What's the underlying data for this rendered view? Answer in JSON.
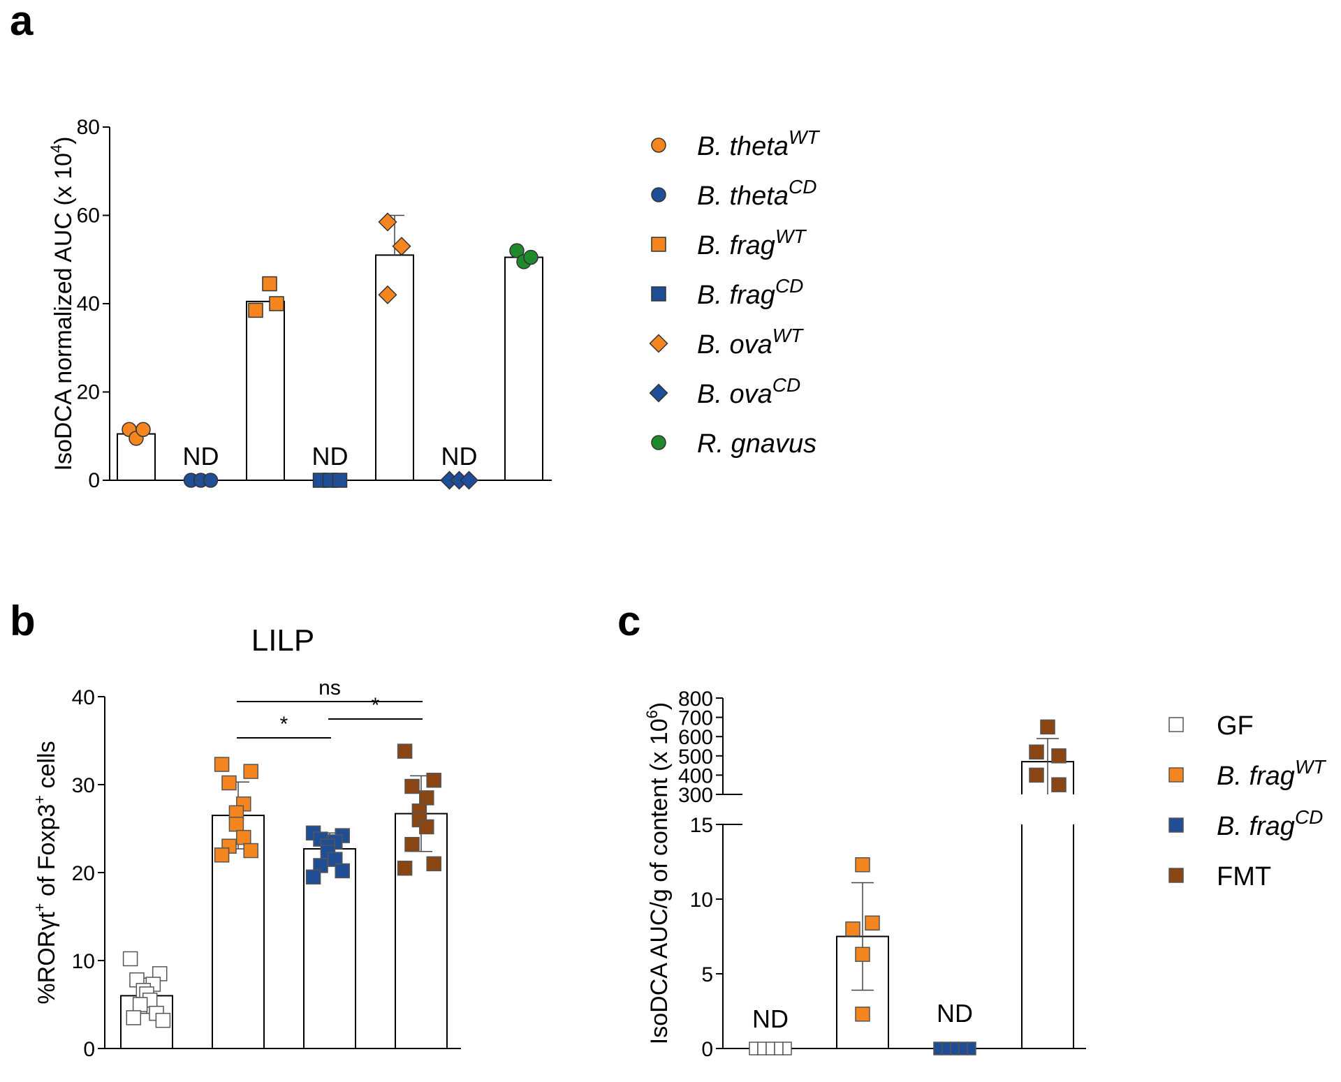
{
  "figure": {
    "panels": [
      {
        "id": "a",
        "label": "a"
      },
      {
        "id": "b",
        "label": "b",
        "title": "LILP"
      },
      {
        "id": "c",
        "label": "c"
      }
    ]
  },
  "chart_data": [
    {
      "id": "a",
      "type": "bar",
      "ylabel": "IsoDCA normalized AUC (x 10",
      "ylabel_sup": "4",
      "ylabel_tail": ")",
      "ylim": [
        0,
        80
      ],
      "yticks": [
        0,
        20,
        40,
        60,
        80
      ],
      "grid": false,
      "legend_position": "right",
      "categories": [
        "B. thetaWT",
        "B. thetaCD",
        "B. fragWT",
        "B. fragCD",
        "B. ovaWT",
        "B. ovaCD",
        "R. gnavus"
      ],
      "series": [
        {
          "name": "B. theta",
          "sup": "WT",
          "color": "#f5861f",
          "marker": "circle",
          "mean": 10.5,
          "points": [
            11.5,
            9.5,
            11.5
          ],
          "nd": false
        },
        {
          "name": "B. theta",
          "sup": "CD",
          "color": "#1f4e96",
          "marker": "circle",
          "mean": 0,
          "points": [
            0,
            0,
            0
          ],
          "nd": true
        },
        {
          "name": "B. frag",
          "sup": "WT",
          "color": "#f5861f",
          "marker": "square",
          "mean": 40.5,
          "points": [
            38.5,
            44.5,
            40
          ],
          "nd": false
        },
        {
          "name": "B. frag",
          "sup": "CD",
          "color": "#1f4e96",
          "marker": "square",
          "mean": 0,
          "points": [
            0,
            0,
            0
          ],
          "nd": true
        },
        {
          "name": "B. ova",
          "sup": "WT",
          "color": "#f5861f",
          "marker": "diamond",
          "mean": 51,
          "points": [
            58.5,
            42,
            53
          ],
          "sd": 9,
          "nd": false
        },
        {
          "name": "B. ova",
          "sup": "CD",
          "color": "#1f4e96",
          "marker": "diamond",
          "mean": 0,
          "points": [
            0,
            0,
            0
          ],
          "nd": true
        },
        {
          "name": "R. gnavus",
          "sup": "",
          "color": "#1e8a2c",
          "marker": "circle",
          "mean": 50.5,
          "points": [
            52,
            49.5,
            50.5
          ],
          "nd": false
        }
      ],
      "nd_label": "ND"
    },
    {
      "id": "b",
      "type": "bar",
      "title": "LILP",
      "ylabel": "%RORγt",
      "ylabel_sup1": "+",
      "ylabel_mid": " of Foxp3",
      "ylabel_sup2": "+",
      "ylabel_tail": " cells",
      "ylim": [
        0,
        40
      ],
      "yticks": [
        0,
        10,
        20,
        30,
        40
      ],
      "grid": false,
      "series": [
        {
          "name": "GF",
          "color": "#ffffff",
          "edge": "#555555",
          "marker": "square",
          "mean": 6,
          "sd": 2,
          "points": [
            10.2,
            8.5,
            7.8,
            7.3,
            6.6,
            6.2,
            5.5,
            5.0,
            4.0,
            3.5,
            3.2
          ]
        },
        {
          "name": "B. fragWT",
          "color": "#f5861f",
          "edge": "#555555",
          "marker": "square",
          "mean": 26.5,
          "sd": 3.8,
          "points": [
            32.3,
            31.5,
            30.2,
            27.8,
            26.8,
            25.5,
            24.0,
            23.0,
            22.5,
            22.0
          ]
        },
        {
          "name": "B. fragCD",
          "color": "#1f4e96",
          "edge": "#555555",
          "marker": "square",
          "mean": 22.7,
          "sd": 1.8,
          "points": [
            24.5,
            24.2,
            23.8,
            23.5,
            23.0,
            22.3,
            21.5,
            20.8,
            20.2,
            19.5
          ]
        },
        {
          "name": "FMT",
          "color": "#8b4513",
          "edge": "#555555",
          "marker": "square",
          "mean": 26.7,
          "sd": 4.3,
          "points": [
            33.8,
            30.5,
            29.8,
            28.5,
            27.0,
            26.0,
            25.2,
            23.2,
            21.0,
            20.5
          ]
        }
      ],
      "significance": [
        {
          "from": 1,
          "to": 3,
          "label": "ns"
        },
        {
          "from": 1,
          "to": 2,
          "label": "*"
        },
        {
          "from": 2,
          "to": 3,
          "label": "*"
        }
      ]
    },
    {
      "id": "c",
      "type": "bar",
      "ylabel": "IsoDCA AUC/g of content (x 10",
      "ylabel_sup": "6",
      "ylabel_tail": ")",
      "broken_axis": true,
      "ylim_lower": [
        0,
        15
      ],
      "yticks_lower": [
        0,
        5,
        10,
        15
      ],
      "ylim_upper": [
        300,
        800
      ],
      "yticks_upper": [
        300,
        400,
        500,
        600,
        700,
        800
      ],
      "grid": false,
      "legend_position": "right",
      "nd_label": "ND",
      "series": [
        {
          "name": "GF",
          "sup": "",
          "color": "#ffffff",
          "edge": "#555555",
          "marker": "square",
          "mean": 0,
          "points": [
            0,
            0,
            0,
            0,
            0
          ],
          "nd": true
        },
        {
          "name": "B. frag",
          "sup": "WT",
          "color": "#f5861f",
          "edge": "#555555",
          "marker": "square",
          "mean": 7.5,
          "sd": 3.6,
          "points": [
            12.3,
            8.4,
            8.0,
            6.3,
            2.3
          ],
          "nd": false
        },
        {
          "name": "B. frag",
          "sup": "CD",
          "color": "#1f4e96",
          "edge": "#555555",
          "marker": "square",
          "mean": 0,
          "points": [
            0,
            0,
            0,
            0,
            0
          ],
          "nd": true
        },
        {
          "name": "FMT",
          "sup": "",
          "color": "#8b4513",
          "edge": "#555555",
          "marker": "square",
          "mean": 470,
          "sd": 120,
          "points": [
            650,
            520,
            500,
            400,
            350
          ],
          "nd": false
        }
      ]
    }
  ]
}
